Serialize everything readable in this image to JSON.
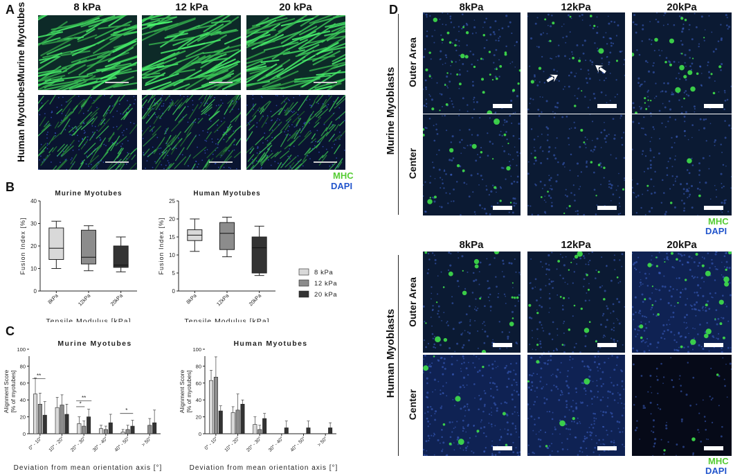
{
  "panels": {
    "A": "A",
    "B": "B",
    "C": "C",
    "D": "D"
  },
  "panelA": {
    "columns": [
      "8 kPa",
      "12 kPa",
      "20 kPa"
    ],
    "rows": [
      "Murine Myotubes",
      "Human Myotubes"
    ],
    "legend": {
      "mhc": "MHC",
      "dapi": "DAPI"
    }
  },
  "panelD": {
    "columns_top": [
      "8kPa",
      "12kPa",
      "20kPa"
    ],
    "columns_bottom": [
      "8kPa",
      "12kPa",
      "20kPa"
    ],
    "group_top": "Murine Myoblasts",
    "group_bottom": "Human Myoblasts",
    "row_labels": [
      "Outer Area",
      "Center"
    ],
    "legend": {
      "mhc": "MHC",
      "dapi": "DAPI"
    }
  },
  "colors": {
    "light": "#d9d9d9",
    "mid": "#8c8c8c",
    "dark": "#333333",
    "mhc": "#55cc33",
    "dapi": "#2255cc"
  },
  "chart_data": [
    {
      "type": "box",
      "title": "Murine Myotubes",
      "xlabel": "Tensile Modulus [kPa]",
      "ylabel": "Fusion Index [%]",
      "categories": [
        "8kPa",
        "12kPa",
        "20kPa"
      ],
      "ylim": [
        0,
        40
      ],
      "yticks": [
        0,
        10,
        20,
        30,
        40
      ],
      "boxes": [
        {
          "min": 10,
          "q1": 14,
          "median": 19,
          "q3": 28,
          "max": 31
        },
        {
          "min": 9,
          "q1": 12,
          "median": 15,
          "q3": 27,
          "max": 29
        },
        {
          "min": 8.5,
          "q1": 10.5,
          "median": 11.5,
          "q3": 20,
          "max": 24
        }
      ]
    },
    {
      "type": "box",
      "title": "Human Myotubes",
      "xlabel": "Tensile Modulus [kPa]",
      "ylabel": "Fusion Index [%]",
      "categories": [
        "8kPa",
        "12kPa",
        "20kPa"
      ],
      "ylim": [
        0,
        25
      ],
      "yticks": [
        0,
        5,
        10,
        15,
        20,
        25
      ],
      "boxes": [
        {
          "min": 11,
          "q1": 14,
          "median": 15.5,
          "q3": 17,
          "max": 20
        },
        {
          "min": 9.5,
          "q1": 11.5,
          "median": 16,
          "q3": 19,
          "max": 20.5
        },
        {
          "min": 4.3,
          "q1": 5,
          "median": 12,
          "q3": 15,
          "max": 18
        }
      ],
      "legend": [
        "8 kPa",
        "12 kPa",
        "20 kPa"
      ]
    },
    {
      "type": "bar",
      "title": "Murine Myotubes",
      "xlabel": "Deviation from mean orientation axis [°]",
      "ylabel": "Alignment Score [% of myotubes]",
      "categories": [
        "0° - 10°",
        "10° - 20°",
        "20° - 30°",
        "30° - 40°",
        "40° - 50°",
        "> 50°"
      ],
      "ylim": [
        0,
        100
      ],
      "yticks": [
        0,
        20,
        40,
        60,
        80,
        100
      ],
      "series": [
        {
          "name": "8 kPa",
          "values": [
            47,
            31,
            12,
            6,
            2,
            0
          ],
          "errors": [
            19,
            12,
            8,
            4,
            3,
            0
          ]
        },
        {
          "name": "12 kPa",
          "values": [
            35,
            34,
            9,
            5,
            5,
            10
          ],
          "errors": [
            13,
            12,
            6,
            4,
            5,
            8
          ]
        },
        {
          "name": "20 kPa",
          "values": [
            22,
            23,
            20,
            13,
            9,
            13
          ],
          "errors": [
            16,
            12,
            9,
            10,
            7,
            15
          ]
        }
      ],
      "significance": [
        {
          "label": "**",
          "y": 65
        },
        {
          "label": "**",
          "y": 39
        },
        {
          "label": "*",
          "y": 32
        },
        {
          "label": "*",
          "y": 24
        }
      ]
    },
    {
      "type": "bar",
      "title": "Human Myotubes",
      "xlabel": "Deviation from mean orientation axis [°]",
      "ylabel": "Alignment Score [% of myotubes]",
      "categories": [
        "0° - 10°",
        "10° - 20°",
        "20° - 30°",
        "30° - 40°",
        "40° - 50°",
        "> 50°"
      ],
      "ylim": [
        0,
        100
      ],
      "yticks": [
        0,
        20,
        40,
        60,
        80,
        100
      ],
      "series": [
        {
          "name": "8 kPa",
          "values": [
            63,
            25,
            11,
            0,
            0,
            0
          ],
          "errors": [
            12,
            7,
            9,
            0,
            0,
            0
          ]
        },
        {
          "name": "12 kPa",
          "values": [
            67,
            28,
            5,
            0,
            0,
            0
          ],
          "errors": [
            24,
            19,
            5,
            0,
            0,
            0
          ]
        },
        {
          "name": "20 kPa",
          "values": [
            27,
            35,
            18,
            7,
            7,
            7
          ],
          "errors": [
            6,
            5,
            6,
            8,
            8,
            6
          ]
        }
      ]
    }
  ]
}
